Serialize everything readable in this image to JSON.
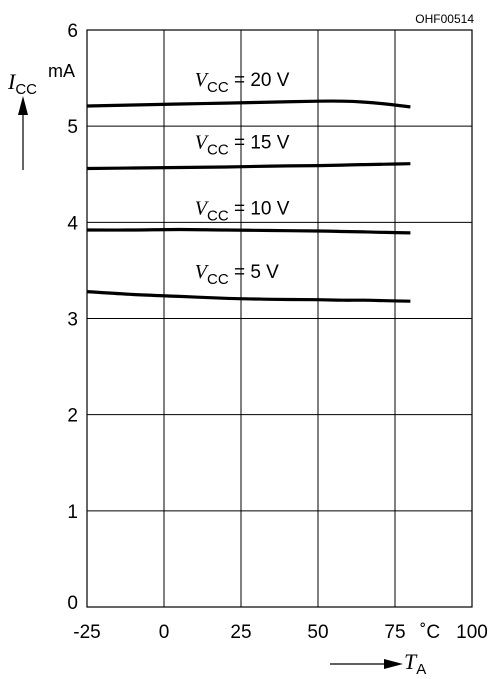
{
  "chart_data": {
    "type": "line",
    "code": "OHF00514",
    "x": [
      -25,
      -10,
      5,
      20,
      35,
      50,
      58,
      65,
      72,
      80
    ],
    "xlim": [
      -25,
      100
    ],
    "ylim": [
      0,
      6
    ],
    "x_ticks": [
      "-25",
      "0",
      "25",
      "50",
      "75",
      "100"
    ],
    "x_unit": "˚C",
    "y_ticks": [
      "0",
      "1",
      "2",
      "3",
      "4",
      "5",
      "6"
    ],
    "y_unit": "mA",
    "ylabel": {
      "symbol": "I",
      "sub": "CC"
    },
    "xlabel": {
      "symbol": "T",
      "sub": "A"
    },
    "grid": true,
    "series": [
      {
        "name": "VCC = 20 V",
        "label": {
          "symbol": "V",
          "sub": "CC",
          "rest": " = 20 V"
        },
        "values": [
          5.21,
          5.22,
          5.23,
          5.24,
          5.25,
          5.26,
          5.26,
          5.25,
          5.23,
          5.2
        ]
      },
      {
        "name": "VCC = 15 V",
        "label": {
          "symbol": "V",
          "sub": "CC",
          "rest": " = 15 V"
        },
        "values": [
          4.56,
          4.565,
          4.57,
          4.575,
          4.585,
          4.59,
          4.595,
          4.6,
          4.605,
          4.61
        ]
      },
      {
        "name": "VCC = 10 V",
        "label": {
          "symbol": "V",
          "sub": "CC",
          "rest": " = 10 V"
        },
        "values": [
          3.92,
          3.92,
          3.925,
          3.92,
          3.915,
          3.91,
          3.905,
          3.9,
          3.895,
          3.89
        ]
      },
      {
        "name": "VCC = 5 V",
        "label": {
          "symbol": "V",
          "sub": "CC",
          "rest": " = 5 V"
        },
        "values": [
          3.28,
          3.25,
          3.23,
          3.21,
          3.2,
          3.195,
          3.19,
          3.19,
          3.185,
          3.18
        ]
      }
    ],
    "label_at": [
      {
        "x": 10,
        "y": 5.42
      },
      {
        "x": 10,
        "y": 4.77
      },
      {
        "x": 10,
        "y": 4.08
      },
      {
        "x": 10,
        "y": 3.42
      }
    ]
  }
}
